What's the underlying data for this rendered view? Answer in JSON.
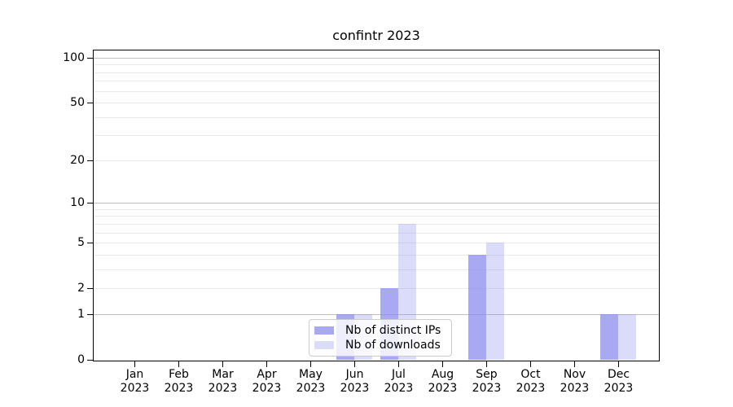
{
  "chart_data": {
    "type": "bar",
    "title": "confintr 2023",
    "categories": [
      "Jan 2023",
      "Feb 2023",
      "Mar 2023",
      "Apr 2023",
      "May 2023",
      "Jun 2023",
      "Jul 2023",
      "Aug 2023",
      "Sep 2023",
      "Oct 2023",
      "Nov 2023",
      "Dec 2023"
    ],
    "series": [
      {
        "name": "Nb of distinct IPs",
        "color": "rgba(136,136,238,0.72)",
        "values": [
          0,
          0,
          0,
          0,
          0,
          1,
          2,
          0,
          4,
          0,
          0,
          1
        ]
      },
      {
        "name": "Nb of downloads",
        "color": "rgba(136,136,238,0.30)",
        "values": [
          0,
          0,
          0,
          0,
          0,
          1,
          7,
          0,
          5,
          0,
          0,
          1
        ]
      }
    ],
    "yscale": "log1p",
    "ylim": [
      0,
      112
    ],
    "yticks": [
      0,
      1,
      2,
      5,
      10,
      20,
      50,
      100
    ],
    "gridlines": {
      "light": [
        2,
        3,
        4,
        5,
        6,
        7,
        8,
        9,
        20,
        30,
        40,
        50,
        60,
        70,
        80,
        90
      ],
      "dark": [
        1,
        10,
        100
      ]
    },
    "grid": "horizontal",
    "legend_position": "lower center",
    "style": {
      "grid_light_color": "#eaeaea",
      "grid_dark_color": "#c0c0c0",
      "spine_color": "#000000",
      "background": "#ffffff"
    }
  }
}
